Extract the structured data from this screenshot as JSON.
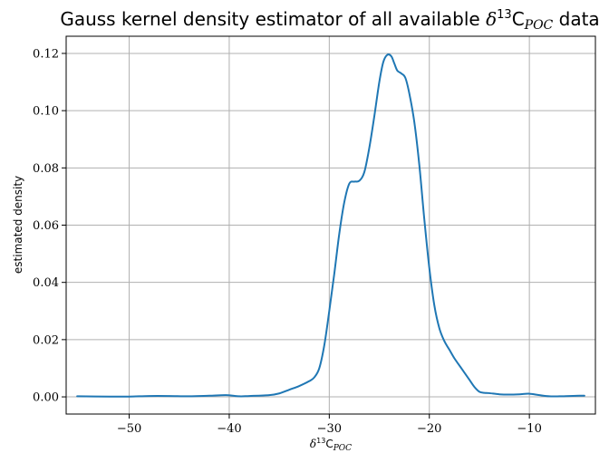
{
  "chart_data": {
    "type": "line",
    "title_prefix": "Gauss kernel density estimator of all available ",
    "title_math": "δ",
    "title_sup": "13",
    "title_c": "C",
    "title_sub": "POC",
    "title_suffix": " data",
    "xlabel_math": "δ",
    "xlabel_sup": "13",
    "xlabel_c": "C",
    "xlabel_sub": "POC",
    "ylabel": "estimated density",
    "xlim": [
      -56.3,
      -3.4
    ],
    "ylim": [
      -0.006,
      0.126
    ],
    "xticks": [
      -50,
      -40,
      -30,
      -20,
      -10
    ],
    "xtick_labels": [
      "−50",
      "−40",
      "−30",
      "−20",
      "−10"
    ],
    "yticks": [
      0.0,
      0.02,
      0.04,
      0.06,
      0.08,
      0.1,
      0.12
    ],
    "ytick_labels": [
      "0.00",
      "0.02",
      "0.04",
      "0.06",
      "0.08",
      "0.10",
      "0.12"
    ],
    "grid": true,
    "line_color": "#1f77b4",
    "series": [
      {
        "x": [
          -55.2,
          -52,
          -50,
          -48,
          -46,
          -44,
          -42,
          -40.3,
          -39,
          -38,
          -36,
          -35,
          -34,
          -33,
          -32,
          -31.5,
          -31,
          -30.5,
          -30,
          -29.5,
          -29,
          -28.5,
          -28,
          -27.5,
          -27,
          -26.5,
          -26,
          -25.5,
          -25,
          -24.6,
          -24.2,
          -23.8,
          -23.5,
          -23.2,
          -22.8,
          -22.4,
          -22,
          -21.5,
          -21,
          -20.5,
          -20,
          -19.5,
          -19,
          -18.5,
          -18,
          -17.5,
          -17,
          -16.5,
          -16,
          -15.5,
          -15,
          -14.5,
          -14,
          -13,
          -12,
          -11,
          -10,
          -9,
          -8,
          -7,
          -6,
          -5,
          -4.5
        ],
        "y": [
          0.0002,
          0.0001,
          0.0001,
          0.0003,
          0.0003,
          0.0002,
          0.0004,
          0.0006,
          0.0002,
          0.0003,
          0.0006,
          0.0012,
          0.0025,
          0.0038,
          0.0055,
          0.0068,
          0.01,
          0.018,
          0.03,
          0.043,
          0.057,
          0.068,
          0.0745,
          0.0752,
          0.0755,
          0.0785,
          0.087,
          0.098,
          0.11,
          0.117,
          0.1195,
          0.119,
          0.1165,
          0.114,
          0.113,
          0.1115,
          0.106,
          0.096,
          0.081,
          0.062,
          0.045,
          0.032,
          0.024,
          0.0195,
          0.0165,
          0.0135,
          0.011,
          0.0085,
          0.006,
          0.0035,
          0.0018,
          0.0014,
          0.0013,
          0.0009,
          0.0008,
          0.0009,
          0.0011,
          0.0006,
          0.0002,
          0.0002,
          0.0003,
          0.0004,
          0.0004
        ]
      }
    ]
  }
}
